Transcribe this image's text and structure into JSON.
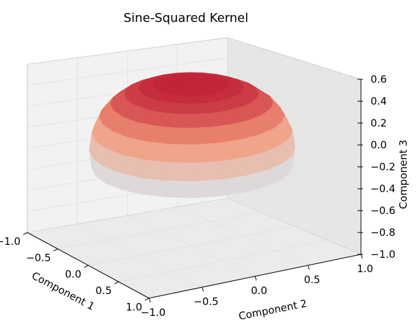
{
  "chart_data": {
    "type": "surface3d",
    "title": "Sine-Squared Kernel",
    "xlabel": "Component 1",
    "ylabel": "Component 2",
    "zlabel": "Component 3",
    "x_ticks": [
      "−1.0",
      "−0.5",
      "0.0",
      "0.5",
      "1.0"
    ],
    "y_ticks": [
      "−1.0",
      "−0.5",
      "0.0",
      "0.5",
      "1.0"
    ],
    "z_ticks": [
      "−1.0",
      "−0.8",
      "−0.6",
      "−0.4",
      "−0.2",
      "0.0",
      "0.2",
      "0.4",
      "0.6"
    ],
    "xlim": [
      -1.0,
      1.0
    ],
    "ylim": [
      -1.0,
      1.0
    ],
    "zlim": [
      -1.0,
      0.6
    ],
    "grid": true,
    "colormap": "coolwarm",
    "colors": {
      "high": "#b40426",
      "mid": "#dddcdc",
      "low": "#3b4cc0",
      "pane": "#f2f2f2",
      "grid": "#e0e0e0"
    },
    "surface": {
      "description_values": {
        "top_z": 0.6,
        "bottom_z": -0.8,
        "shape": "spherical shell cut by a lower lobe; r = sin^2 kernel"
      }
    }
  }
}
